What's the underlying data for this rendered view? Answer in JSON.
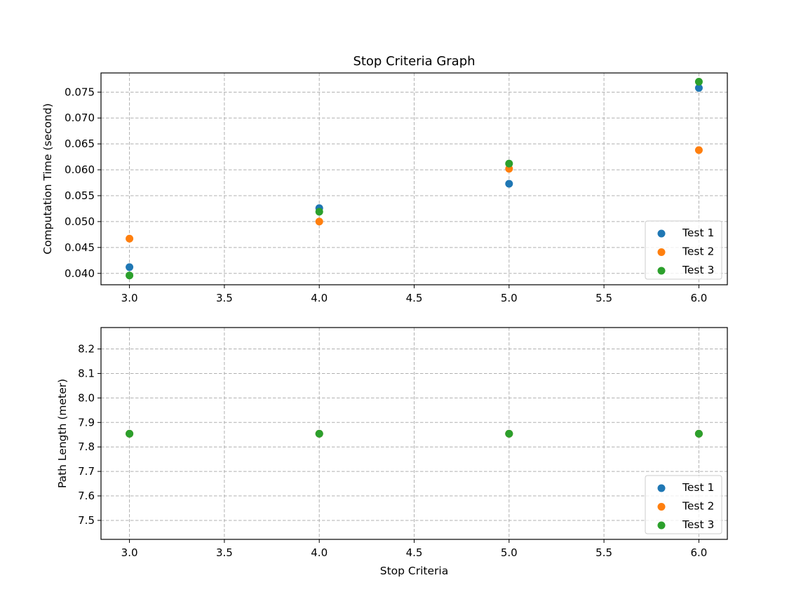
{
  "chart_data": [
    {
      "type": "scatter",
      "title": "Stop Criteria Graph",
      "xlabel": "",
      "ylabel": "Computation Time (second)",
      "xlim": [
        2.85,
        6.15
      ],
      "ylim": [
        0.0378,
        0.0787
      ],
      "xticks": [
        "3.0",
        "3.5",
        "4.0",
        "4.5",
        "5.0",
        "5.5",
        "6.0"
      ],
      "yticks": [
        "0.040",
        "0.045",
        "0.050",
        "0.055",
        "0.060",
        "0.065",
        "0.070",
        "0.075"
      ],
      "grid": true,
      "legend_position": "lower-right",
      "series": [
        {
          "name": "Test 1",
          "color": "#1f77b4",
          "x": [
            3.0,
            4.0,
            5.0,
            6.0
          ],
          "y": [
            0.0412,
            0.0526,
            0.0573,
            0.0758
          ]
        },
        {
          "name": "Test 2",
          "color": "#ff7f0e",
          "x": [
            3.0,
            4.0,
            5.0,
            6.0
          ],
          "y": [
            0.0467,
            0.05,
            0.0602,
            0.0638
          ]
        },
        {
          "name": "Test 3",
          "color": "#2ca02c",
          "x": [
            3.0,
            4.0,
            5.0,
            6.0
          ],
          "y": [
            0.0396,
            0.0519,
            0.0612,
            0.077
          ]
        }
      ]
    },
    {
      "type": "scatter",
      "title": "",
      "xlabel": "Stop Criteria",
      "ylabel": "Path Length (meter)",
      "xlim": [
        2.85,
        6.15
      ],
      "ylim": [
        7.4225,
        8.2875
      ],
      "xticks": [
        "3.0",
        "3.5",
        "4.0",
        "4.5",
        "5.0",
        "5.5",
        "6.0"
      ],
      "yticks": [
        "7.5",
        "7.6",
        "7.7",
        "7.8",
        "7.9",
        "8.0",
        "8.1",
        "8.2"
      ],
      "grid": true,
      "legend_position": "lower-right",
      "series": [
        {
          "name": "Test 1",
          "color": "#1f77b4",
          "x": [
            3.0,
            4.0,
            5.0,
            6.0
          ],
          "y": [
            7.854,
            7.854,
            7.854,
            7.854
          ]
        },
        {
          "name": "Test 2",
          "color": "#ff7f0e",
          "x": [
            3.0,
            4.0,
            5.0,
            6.0
          ],
          "y": [
            7.854,
            7.854,
            7.854,
            7.854
          ]
        },
        {
          "name": "Test 3",
          "color": "#2ca02c",
          "x": [
            3.0,
            4.0,
            5.0,
            6.0
          ],
          "y": [
            7.854,
            7.854,
            7.854,
            7.854
          ]
        }
      ]
    }
  ]
}
